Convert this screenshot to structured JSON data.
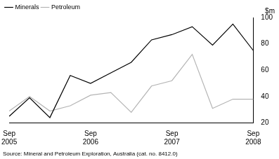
{
  "chart_data": {
    "type": "line",
    "categories": [
      "Sep 2005",
      null,
      null,
      null,
      "Sep 2006",
      null,
      null,
      null,
      "Sep 2007",
      null,
      null,
      null,
      "Sep 2008"
    ],
    "series": [
      {
        "name": "Minerals",
        "color": "#000000",
        "values": [
          25,
          39,
          24,
          56,
          50,
          58,
          66,
          83,
          87,
          93,
          79,
          95,
          75
        ]
      },
      {
        "name": "Petroleum",
        "color": "#b4b4b4",
        "values": [
          29,
          40,
          29,
          33,
          41,
          43,
          28,
          48,
          52,
          72,
          31,
          38,
          38
        ]
      }
    ],
    "y_label": "$m",
    "source": "Source: Mineral and Petroleum Exploration, Australia (cat. no. 8412.0)",
    "ylim": [
      20,
      100
    ],
    "yticks": [
      20,
      40,
      60,
      80,
      100
    ],
    "grid": false,
    "legend": "top-left"
  }
}
